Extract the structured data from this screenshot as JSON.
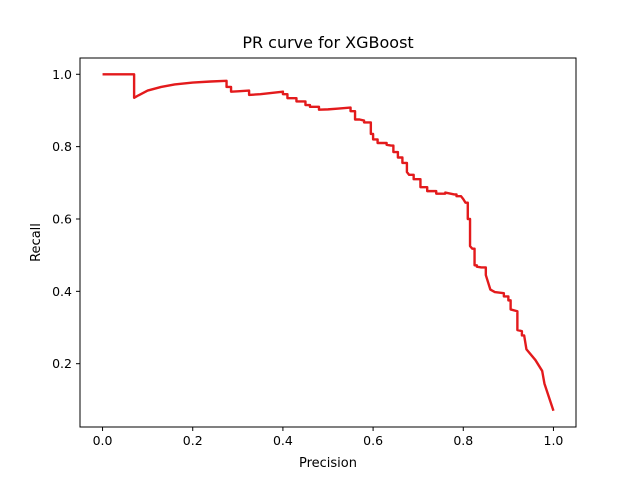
{
  "chart_data": {
    "type": "line",
    "title": "PR curve for XGBoost",
    "xlabel": "Precision",
    "ylabel": "Recall",
    "xlim": [
      -0.05,
      1.05
    ],
    "ylim": [
      0.025,
      1.045
    ],
    "x_ticks": [
      0.0,
      0.2,
      0.4,
      0.6,
      0.8,
      1.0
    ],
    "y_ticks": [
      0.2,
      0.4,
      0.6,
      0.8,
      1.0
    ],
    "x_tick_labels": [
      "0.0",
      "0.2",
      "0.4",
      "0.6",
      "0.8",
      "1.0"
    ],
    "y_tick_labels": [
      "0.2",
      "0.4",
      "0.6",
      "0.8",
      "1.0"
    ],
    "grid": false,
    "series": [
      {
        "color": "#e31a1c",
        "x": [
          0.0,
          0.07,
          0.07,
          0.08,
          0.1,
          0.13,
          0.16,
          0.2,
          0.24,
          0.275,
          0.275,
          0.285,
          0.285,
          0.3,
          0.325,
          0.325,
          0.35,
          0.4,
          0.4,
          0.41,
          0.41,
          0.43,
          0.43,
          0.44,
          0.45,
          0.45,
          0.46,
          0.46,
          0.48,
          0.48,
          0.5,
          0.52,
          0.54,
          0.55,
          0.55,
          0.56,
          0.56,
          0.57,
          0.58,
          0.58,
          0.59,
          0.595,
          0.595,
          0.6,
          0.6,
          0.61,
          0.61,
          0.63,
          0.63,
          0.64,
          0.645,
          0.645,
          0.655,
          0.655,
          0.665,
          0.665,
          0.675,
          0.675,
          0.68,
          0.69,
          0.69,
          0.705,
          0.705,
          0.72,
          0.72,
          0.74,
          0.74,
          0.76,
          0.76,
          0.78,
          0.785,
          0.785,
          0.795,
          0.8,
          0.8,
          0.805,
          0.81,
          0.81,
          0.815,
          0.815,
          0.82,
          0.825,
          0.825,
          0.83,
          0.83,
          0.84,
          0.85,
          0.85,
          0.86,
          0.87,
          0.89,
          0.89,
          0.9,
          0.9,
          0.905,
          0.905,
          0.92,
          0.92,
          0.93,
          0.93,
          0.935,
          0.94,
          0.96,
          0.975,
          0.98,
          1.0
        ],
        "y": [
          1.0,
          1.0,
          0.935,
          0.942,
          0.955,
          0.965,
          0.972,
          0.977,
          0.98,
          0.982,
          0.965,
          0.965,
          0.952,
          0.953,
          0.955,
          0.943,
          0.945,
          0.952,
          0.945,
          0.945,
          0.934,
          0.934,
          0.925,
          0.925,
          0.925,
          0.915,
          0.915,
          0.91,
          0.91,
          0.902,
          0.903,
          0.905,
          0.907,
          0.908,
          0.898,
          0.898,
          0.875,
          0.875,
          0.872,
          0.867,
          0.867,
          0.867,
          0.835,
          0.835,
          0.82,
          0.82,
          0.81,
          0.81,
          0.805,
          0.803,
          0.803,
          0.785,
          0.785,
          0.77,
          0.77,
          0.755,
          0.755,
          0.73,
          0.722,
          0.722,
          0.71,
          0.71,
          0.688,
          0.688,
          0.677,
          0.677,
          0.67,
          0.67,
          0.673,
          0.668,
          0.668,
          0.663,
          0.663,
          0.655,
          0.655,
          0.645,
          0.645,
          0.6,
          0.6,
          0.525,
          0.518,
          0.518,
          0.472,
          0.472,
          0.468,
          0.466,
          0.466,
          0.445,
          0.405,
          0.398,
          0.395,
          0.386,
          0.386,
          0.375,
          0.375,
          0.35,
          0.345,
          0.293,
          0.29,
          0.278,
          0.278,
          0.24,
          0.21,
          0.18,
          0.145,
          0.07
        ]
      }
    ]
  }
}
